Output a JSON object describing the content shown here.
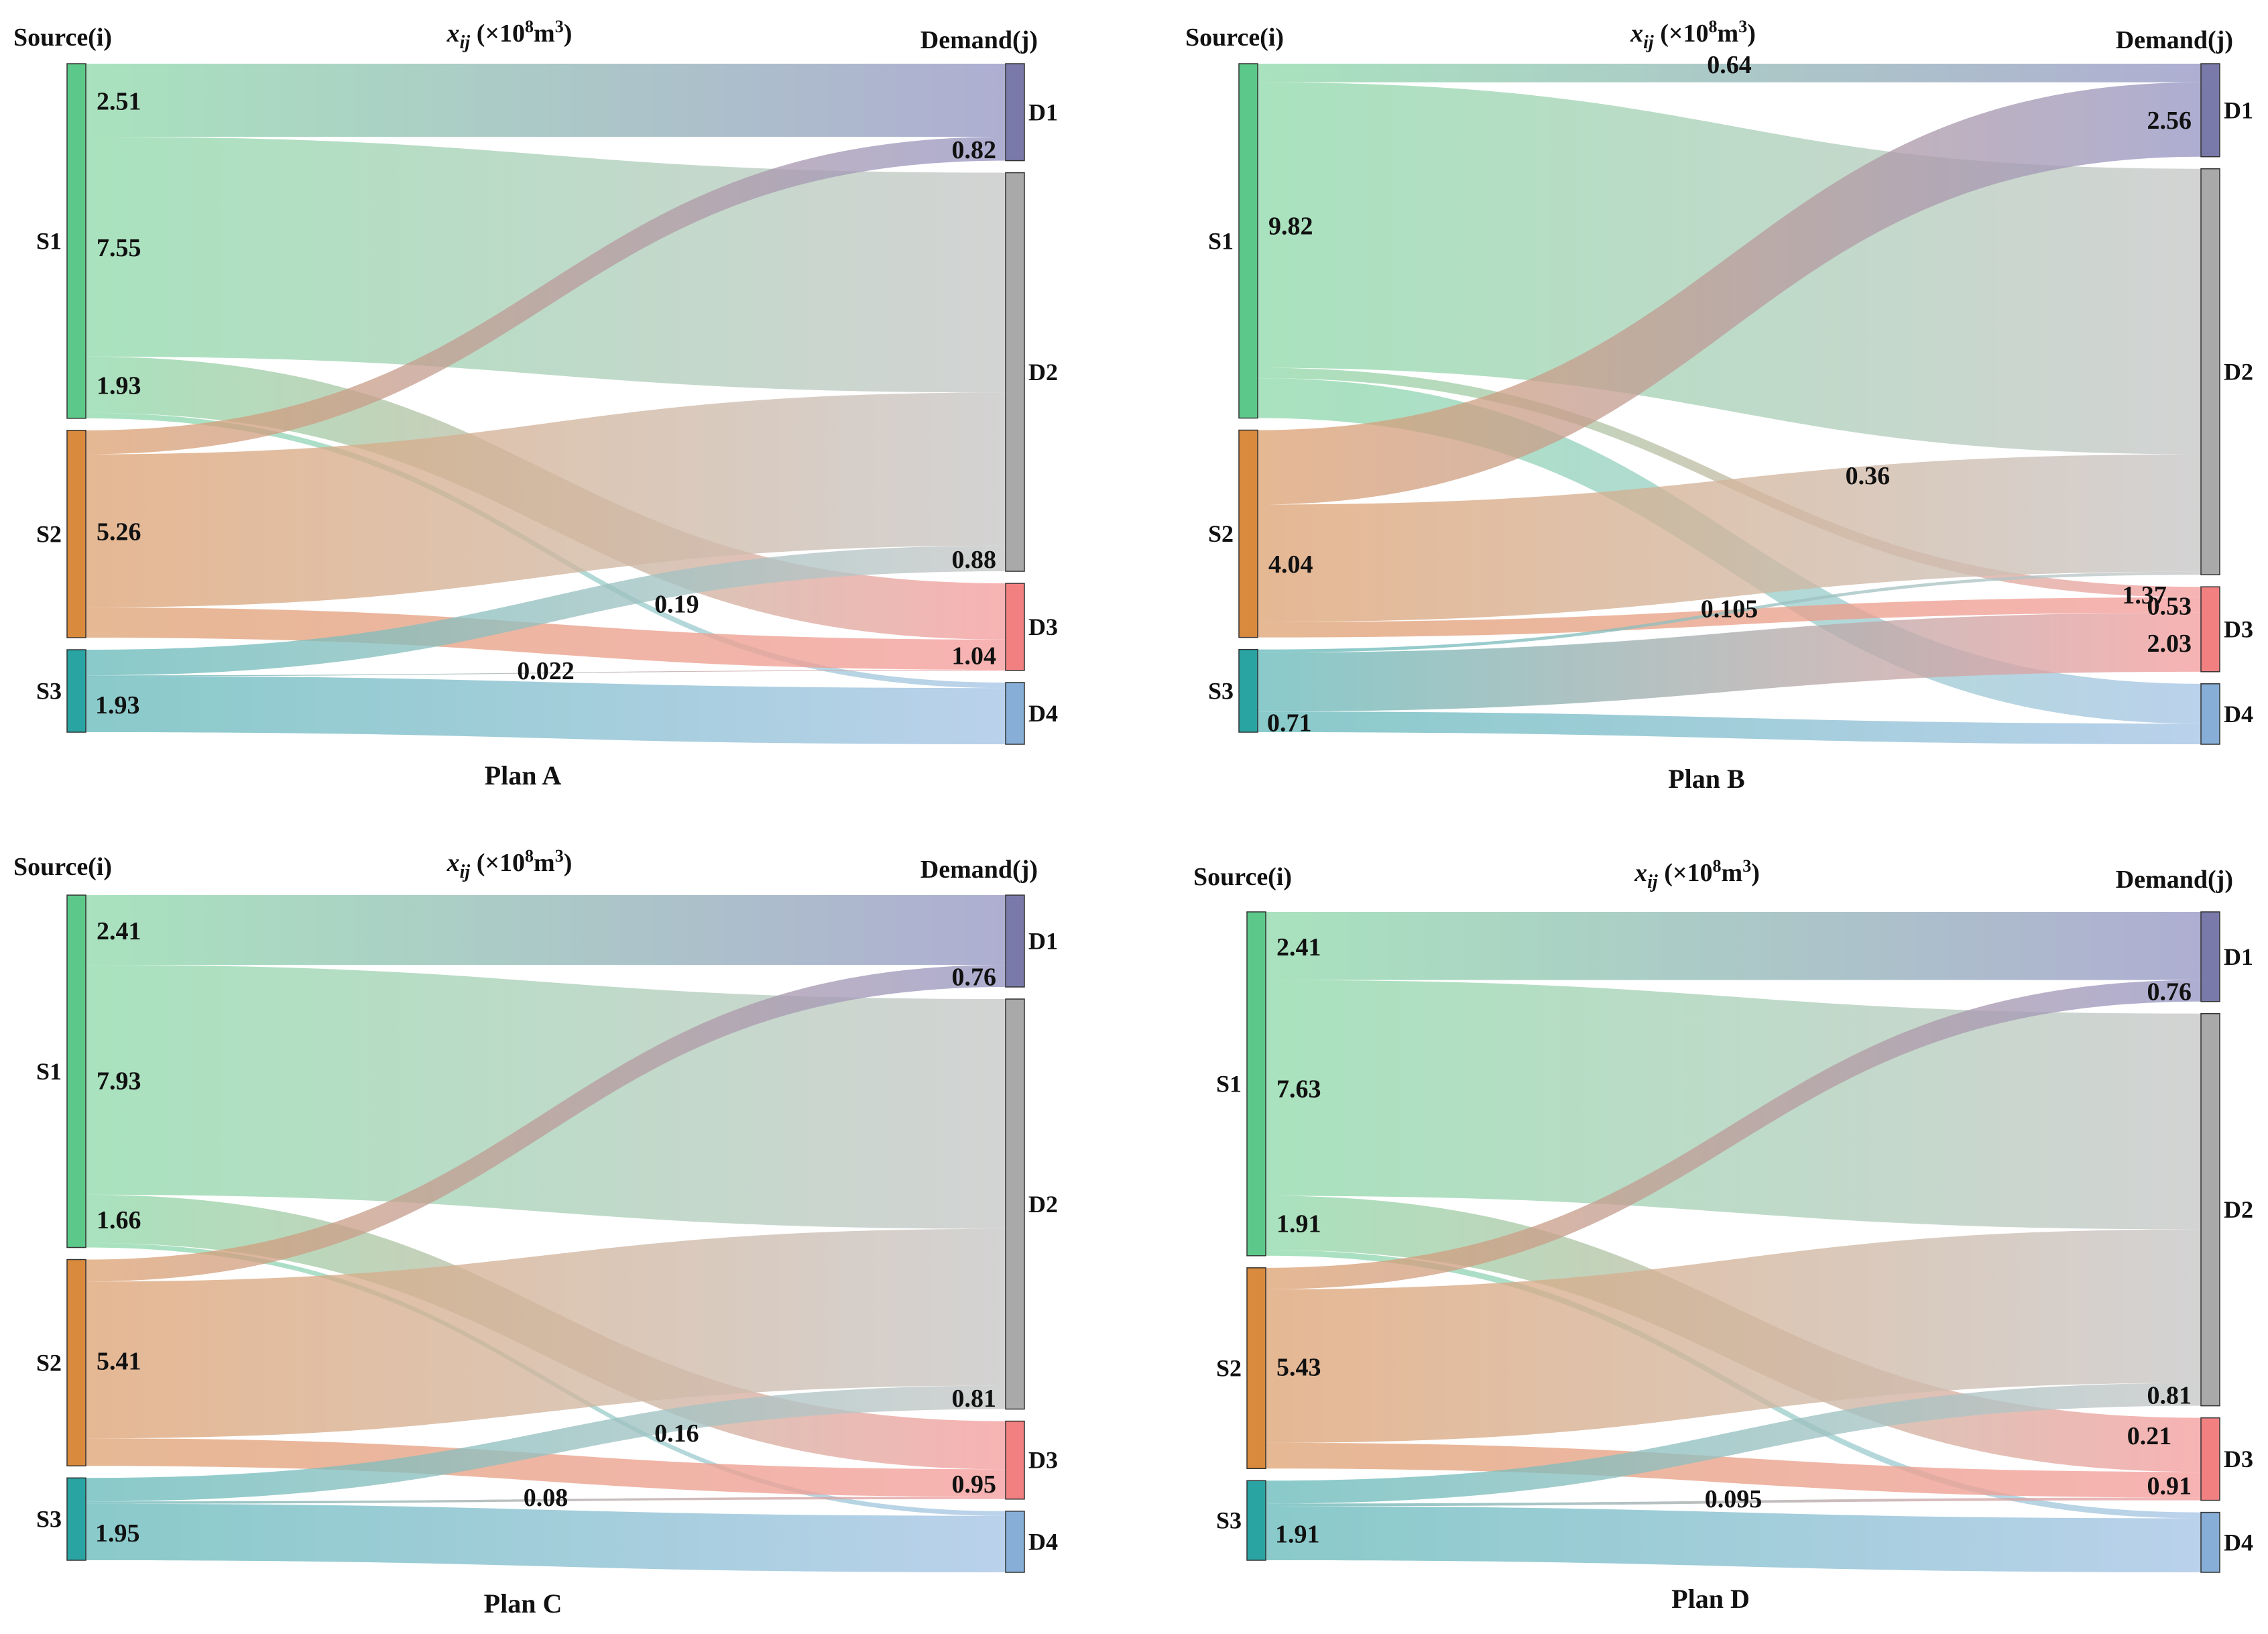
{
  "labels": {
    "source_header": "Source(i)",
    "demand_header": "Demand(j)",
    "x_var": "x",
    "x_sub": "ij",
    "unit_prefix": " (×10",
    "unit_exp": "8",
    "unit_mid": "m",
    "unit_exp2": "3",
    "unit_suffix": ")"
  },
  "colors": {
    "S1": "#5cc98a",
    "S2": "#d98a3d",
    "S3": "#2aa3a3",
    "D1": "#7a7aaa",
    "D2": "#a9a9a9",
    "D3": "#f28080",
    "D4": "#86aed6",
    "S1_flow": "#8cd8a8",
    "S2_flow": "#dda070",
    "S3_flow": "#63b8b8",
    "D1_flow": "#9a9ac6",
    "D2_flow": "#c8c8c8",
    "D3_flow": "#f5a0a0",
    "D4_flow": "#a9c6e6"
  },
  "chart_data": [
    {
      "type": "sankey",
      "title": "Plan A",
      "sources": [
        "S1",
        "S2",
        "S3"
      ],
      "demands": [
        "D1",
        "D2",
        "D3",
        "D4"
      ],
      "flows": [
        {
          "from": "S1",
          "to": "D1",
          "value": 2.51,
          "label": "2.51"
        },
        {
          "from": "S1",
          "to": "D2",
          "value": 7.55,
          "label": "7.55"
        },
        {
          "from": "S1",
          "to": "D3",
          "value": 1.93,
          "label": "1.93"
        },
        {
          "from": "S1",
          "to": "D4",
          "value": 0.19,
          "label": "0.19"
        },
        {
          "from": "S2",
          "to": "D1",
          "value": 0.82,
          "label": "0.82"
        },
        {
          "from": "S2",
          "to": "D2",
          "value": 5.26,
          "label": "5.26"
        },
        {
          "from": "S2",
          "to": "D3",
          "value": 1.04,
          "label": "1.04"
        },
        {
          "from": "S3",
          "to": "D2",
          "value": 0.88,
          "label": "0.88"
        },
        {
          "from": "S3",
          "to": "D3",
          "value": 0.022,
          "label": "0.022"
        },
        {
          "from": "S3",
          "to": "D4",
          "value": 1.93,
          "label": "1.93"
        }
      ]
    },
    {
      "type": "sankey",
      "title": "Plan B",
      "sources": [
        "S1",
        "S2",
        "S3"
      ],
      "demands": [
        "D1",
        "D2",
        "D3",
        "D4"
      ],
      "flows": [
        {
          "from": "S1",
          "to": "D1",
          "value": 0.64,
          "label": "0.64"
        },
        {
          "from": "S1",
          "to": "D2",
          "value": 9.82,
          "label": "9.82"
        },
        {
          "from": "S1",
          "to": "D3",
          "value": 0.36,
          "label": "0.36"
        },
        {
          "from": "S1",
          "to": "D4",
          "value": 1.37,
          "label": "1.37"
        },
        {
          "from": "S2",
          "to": "D1",
          "value": 2.56,
          "label": "2.56"
        },
        {
          "from": "S2",
          "to": "D2",
          "value": 4.04,
          "label": "4.04"
        },
        {
          "from": "S2",
          "to": "D3",
          "value": 0.53,
          "label": "0.53"
        },
        {
          "from": "S3",
          "to": "D3",
          "value": 2.03,
          "label": "2.03"
        },
        {
          "from": "S3",
          "to": "D2",
          "value": 0.105,
          "label": "0.105"
        },
        {
          "from": "S3",
          "to": "D4",
          "value": 0.71,
          "label": "0.71"
        }
      ]
    },
    {
      "type": "sankey",
      "title": "Plan C",
      "sources": [
        "S1",
        "S2",
        "S3"
      ],
      "demands": [
        "D1",
        "D2",
        "D3",
        "D4"
      ],
      "flows": [
        {
          "from": "S1",
          "to": "D1",
          "value": 2.41,
          "label": "2.41"
        },
        {
          "from": "S1",
          "to": "D2",
          "value": 7.93,
          "label": "7.93"
        },
        {
          "from": "S1",
          "to": "D3",
          "value": 1.66,
          "label": "1.66"
        },
        {
          "from": "S1",
          "to": "D4",
          "value": 0.16,
          "label": "0.16"
        },
        {
          "from": "S2",
          "to": "D1",
          "value": 0.76,
          "label": "0.76"
        },
        {
          "from": "S2",
          "to": "D2",
          "value": 5.41,
          "label": "5.41"
        },
        {
          "from": "S2",
          "to": "D3",
          "value": 0.95,
          "label": "0.95"
        },
        {
          "from": "S3",
          "to": "D2",
          "value": 0.81,
          "label": "0.81"
        },
        {
          "from": "S3",
          "to": "D3",
          "value": 0.08,
          "label": "0.08"
        },
        {
          "from": "S3",
          "to": "D4",
          "value": 1.95,
          "label": "1.95"
        }
      ]
    },
    {
      "type": "sankey",
      "title": "Plan D",
      "sources": [
        "S1",
        "S2",
        "S3"
      ],
      "demands": [
        "D1",
        "D2",
        "D3",
        "D4"
      ],
      "flows": [
        {
          "from": "S1",
          "to": "D1",
          "value": 2.41,
          "label": "2.41"
        },
        {
          "from": "S1",
          "to": "D2",
          "value": 7.63,
          "label": "7.63"
        },
        {
          "from": "S1",
          "to": "D3",
          "value": 1.91,
          "label": "1.91"
        },
        {
          "from": "S1",
          "to": "D4",
          "value": 0.21,
          "label": "0.21"
        },
        {
          "from": "S2",
          "to": "D1",
          "value": 0.76,
          "label": "0.76"
        },
        {
          "from": "S2",
          "to": "D2",
          "value": 5.43,
          "label": "5.43"
        },
        {
          "from": "S2",
          "to": "D3",
          "value": 0.91,
          "label": "0.91"
        },
        {
          "from": "S3",
          "to": "D2",
          "value": 0.81,
          "label": "0.81"
        },
        {
          "from": "S3",
          "to": "D3",
          "value": 0.095,
          "label": "0.095"
        },
        {
          "from": "S3",
          "to": "D4",
          "value": 1.91,
          "label": "1.91"
        }
      ]
    }
  ]
}
